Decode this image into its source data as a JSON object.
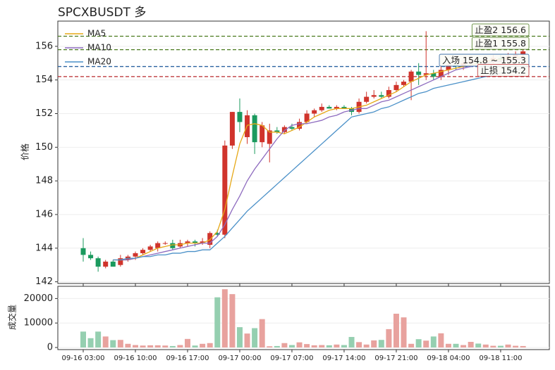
{
  "chart_data": [
    {
      "type": "candlestick",
      "title": "SPCXBUSDT  多",
      "ylabel": "价格",
      "categories": [
        "09-16 03:00",
        null,
        null,
        null,
        null,
        null,
        null,
        "09-16 10:00",
        null,
        null,
        null,
        null,
        null,
        null,
        "09-16 17:00",
        null,
        null,
        null,
        null,
        null,
        null,
        "09-17 00:00",
        null,
        null,
        null,
        null,
        null,
        null,
        "09-17 07:00",
        null,
        null,
        null,
        null,
        null,
        null,
        "09-17 14:00",
        null,
        null,
        null,
        null,
        null,
        null,
        "09-17 21:00",
        null,
        null,
        null,
        null,
        null,
        null,
        "09-18 04:00",
        null,
        null,
        null,
        null,
        null,
        null,
        "09-18 11:00",
        null,
        null,
        null
      ],
      "open": [
        144.0,
        143.6,
        143.4,
        142.9,
        143.2,
        143.0,
        143.3,
        143.5,
        143.7,
        143.9,
        144.0,
        144.3,
        144.3,
        144.1,
        144.3,
        144.4,
        144.3,
        144.2,
        144.9,
        144.8,
        150.1,
        152.1,
        150.6,
        151.9,
        150.3,
        150.2,
        151.0,
        150.9,
        151.2,
        151.1,
        151.5,
        152.0,
        152.2,
        152.4,
        152.3,
        152.4,
        152.3,
        152.1,
        152.7,
        153.0,
        153.1,
        153.0,
        153.4,
        153.7,
        153.9,
        154.5,
        154.3,
        154.4,
        154.2,
        154.6,
        154.9,
        154.8,
        155.0,
        155.1,
        155.0,
        155.2,
        155.3,
        155.2,
        155.4,
        155.5
      ],
      "high": [
        144.6,
        143.8,
        143.5,
        143.3,
        143.3,
        143.6,
        143.6,
        143.8,
        144.0,
        144.2,
        144.4,
        144.4,
        144.5,
        144.5,
        144.5,
        144.5,
        144.6,
        145.0,
        145.1,
        150.4,
        152.1,
        152.9,
        152.2,
        152.0,
        151.5,
        151.4,
        151.2,
        151.3,
        151.4,
        151.7,
        152.2,
        152.3,
        152.6,
        152.5,
        152.5,
        152.5,
        152.4,
        152.9,
        153.3,
        153.4,
        153.3,
        153.6,
        153.9,
        154.0,
        154.6,
        155.0,
        156.9,
        154.6,
        154.8,
        155.0,
        155.1,
        155.2,
        155.3,
        155.3,
        155.4,
        155.5,
        155.5,
        155.6,
        155.7,
        155.8
      ],
      "low": [
        143.2,
        143.3,
        142.6,
        142.8,
        142.9,
        142.9,
        143.2,
        143.3,
        143.6,
        143.8,
        143.8,
        144.2,
        143.9,
        144.0,
        144.1,
        144.1,
        144.2,
        144.0,
        144.7,
        144.6,
        149.9,
        150.9,
        150.2,
        149.6,
        150.0,
        149.1,
        150.8,
        150.8,
        151.0,
        151.0,
        151.4,
        151.8,
        152.1,
        152.3,
        152.2,
        152.3,
        151.9,
        152.0,
        152.6,
        152.9,
        152.9,
        152.9,
        153.3,
        153.6,
        152.8,
        153.7,
        154.0,
        154.0,
        154.0,
        154.3,
        154.6,
        154.6,
        154.8,
        154.9,
        154.9,
        155.0,
        155.1,
        155.1,
        155.3,
        155.4
      ],
      "close": [
        143.6,
        143.4,
        142.9,
        143.2,
        142.9,
        143.4,
        143.5,
        143.7,
        143.9,
        144.1,
        144.3,
        144.3,
        144.0,
        144.3,
        144.4,
        144.3,
        144.4,
        144.9,
        144.8,
        150.1,
        152.1,
        151.5,
        151.9,
        150.3,
        151.3,
        151.0,
        150.9,
        151.2,
        151.1,
        151.5,
        152.0,
        152.2,
        152.4,
        152.3,
        152.4,
        152.3,
        152.1,
        152.7,
        153.0,
        153.1,
        153.0,
        153.4,
        153.7,
        153.9,
        154.5,
        154.3,
        154.4,
        154.2,
        154.6,
        154.9,
        154.8,
        155.0,
        155.1,
        155.0,
        155.2,
        155.3,
        155.2,
        155.4,
        155.5,
        155.7
      ],
      "up_color": "#d0342c",
      "down_color": "#1b9a5e",
      "lines": [
        {
          "name": "MA5",
          "color": "#e6a817",
          "values": [
            null,
            null,
            null,
            null,
            143.3,
            143.3,
            143.3,
            143.4,
            143.6,
            143.8,
            144.0,
            144.1,
            144.2,
            144.2,
            144.3,
            144.3,
            144.3,
            144.5,
            145.0,
            146.3,
            148.3,
            150.2,
            151.3,
            151.4,
            151.3,
            150.9,
            150.9,
            150.8,
            151.0,
            151.2,
            151.5,
            151.8,
            152.0,
            152.2,
            152.3,
            152.3,
            152.3,
            152.4,
            152.5,
            152.7,
            152.9,
            153.1,
            153.3,
            153.6,
            153.9,
            154.1,
            154.3,
            154.4,
            154.5,
            154.6,
            154.7,
            154.8,
            154.9,
            155.0,
            155.1,
            155.2,
            155.2,
            155.3,
            155.3,
            155.4
          ]
        },
        {
          "name": "MA10",
          "color": "#8e6bbf",
          "values": [
            null,
            null,
            null,
            null,
            143.3,
            143.3,
            143.3,
            143.4,
            143.5,
            143.6,
            143.7,
            143.8,
            143.9,
            144.0,
            144.1,
            144.2,
            144.3,
            144.3,
            144.7,
            145.4,
            146.3,
            147.1,
            148.0,
            148.7,
            149.3,
            149.9,
            150.5,
            151.0,
            151.3,
            151.4,
            151.4,
            151.5,
            151.6,
            151.8,
            151.9,
            152.1,
            152.2,
            152.3,
            152.3,
            152.5,
            152.7,
            152.8,
            153.0,
            153.2,
            153.4,
            153.6,
            153.8,
            154.0,
            154.2,
            154.4,
            154.6,
            154.7,
            154.8,
            154.9,
            155.0,
            155.1,
            155.1,
            155.2,
            155.2,
            155.3
          ]
        },
        {
          "name": "MA20",
          "color": "#4a90c8",
          "values": [
            null,
            null,
            null,
            null,
            143.3,
            143.3,
            143.4,
            143.4,
            143.5,
            143.5,
            143.6,
            143.6,
            143.7,
            143.7,
            143.8,
            143.8,
            143.9,
            143.9,
            144.3,
            144.7,
            145.2,
            145.7,
            146.2,
            146.6,
            147.0,
            147.4,
            147.8,
            148.2,
            148.6,
            149.0,
            149.4,
            149.8,
            150.2,
            150.6,
            151.0,
            151.4,
            151.8,
            151.9,
            152.0,
            152.1,
            152.3,
            152.4,
            152.6,
            152.8,
            153.0,
            153.2,
            153.3,
            153.5,
            153.6,
            153.7,
            153.8,
            153.9,
            154.0,
            154.1,
            154.2,
            154.3,
            154.4,
            154.5,
            154.6,
            154.7
          ]
        }
      ],
      "levels": [
        {
          "label": "止盈2 156.6",
          "value": 156.6,
          "color": "#4a7a1e"
        },
        {
          "label": "止盈1 155.8",
          "value": 155.8,
          "color": "#4a7a1e"
        },
        {
          "label": "入场 154.8 ~ 155.3",
          "value": 154.8,
          "color": "#2a62a0"
        },
        {
          "label": "止损 154.2",
          "value": 154.2,
          "color": "#b8282c"
        }
      ],
      "ylim": [
        141.9,
        157.5
      ],
      "yticks": [
        142,
        144,
        146,
        148,
        150,
        152,
        154,
        156
      ],
      "grid": true,
      "legend": "upper left"
    },
    {
      "type": "bar",
      "ylabel": "成交量",
      "values": [
        6500,
        3800,
        6500,
        4500,
        3000,
        3100,
        1500,
        1000,
        800,
        900,
        900,
        800,
        600,
        1000,
        3500,
        800,
        1500,
        1800,
        20500,
        23800,
        21800,
        8300,
        5700,
        7900,
        11600,
        500,
        600,
        1800,
        1000,
        2100,
        1400,
        900,
        1000,
        900,
        1200,
        1000,
        4300,
        2200,
        1200,
        2900,
        3100,
        7500,
        13800,
        12300,
        1500,
        3400,
        2800,
        4500,
        5800,
        1500,
        1500,
        1000,
        2300,
        1600,
        1200,
        700,
        700,
        1200,
        700,
        600
      ],
      "up_color": "#e8a29e",
      "down_color": "#95cfb0",
      "ylim": [
        0,
        25000
      ],
      "yticks": [
        0,
        10000,
        20000
      ],
      "grid": true
    }
  ]
}
